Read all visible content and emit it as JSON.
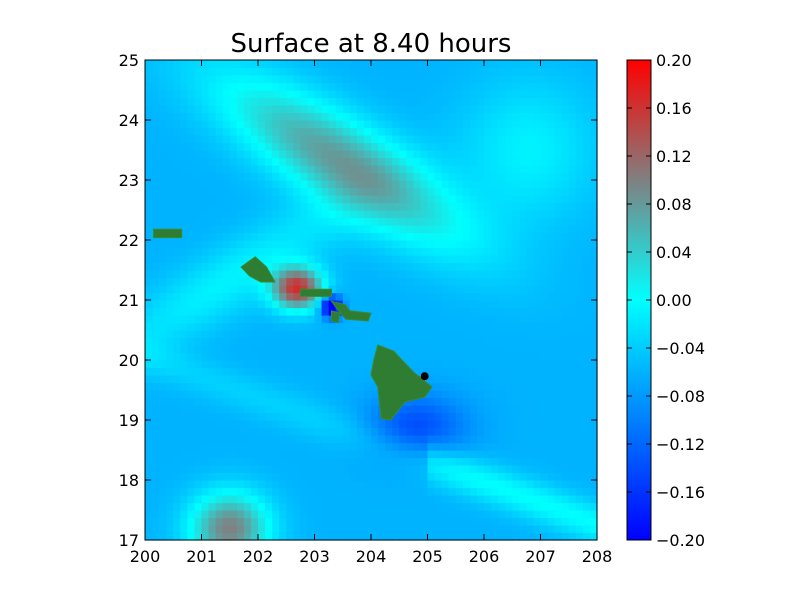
{
  "chart_data": {
    "type": "heatmap",
    "title": "Surface at 8.40 hours",
    "xlabel": "",
    "ylabel": "",
    "xlim": [
      200,
      208
    ],
    "ylim": [
      17,
      25
    ],
    "x_ticks": [
      "200",
      "201",
      "202",
      "203",
      "204",
      "205",
      "206",
      "207",
      "208"
    ],
    "y_ticks": [
      "17",
      "18",
      "19",
      "20",
      "21",
      "22",
      "23",
      "24",
      "25"
    ],
    "grid": false,
    "colorbar": {
      "range": [
        -0.2,
        0.2
      ],
      "ticks": [
        "−0.20",
        "−0.16",
        "−0.12",
        "−0.08",
        "−0.04",
        "0.00",
        "0.04",
        "0.08",
        "0.12",
        "0.16",
        "0.20"
      ],
      "tick_values": [
        -0.2,
        -0.16,
        -0.12,
        -0.08,
        -0.04,
        0.0,
        0.04,
        0.08,
        0.12,
        0.16,
        0.2
      ],
      "colors": [
        {
          "value": -0.2,
          "color": "#0000ff"
        },
        {
          "value": -0.1,
          "color": "#0080ff"
        },
        {
          "value": 0.0,
          "color": "#00ffff"
        },
        {
          "value": 0.1,
          "color": "#808080"
        },
        {
          "value": 0.2,
          "color": "#ff0000"
        }
      ]
    },
    "features": [
      {
        "name": "surface-max",
        "x": 202.7,
        "y": 21.2,
        "value": 0.2
      },
      {
        "name": "surface-min",
        "x": 203.3,
        "y": 20.9,
        "value": -0.2
      },
      {
        "name": "trough-southeast",
        "x": 204.8,
        "y": 18.9,
        "value": -0.15
      },
      {
        "name": "ridge-south",
        "x": 201.5,
        "y": 17.2,
        "value": 0.1
      },
      {
        "name": "ridge-north",
        "x": 203.5,
        "y": 23.3,
        "value": 0.1
      }
    ],
    "islands": [
      {
        "name": "kauai",
        "points": [
          [
            200.15,
            22.04
          ],
          [
            200.65,
            22.04
          ],
          [
            200.65,
            22.18
          ],
          [
            200.15,
            22.18
          ]
        ]
      },
      {
        "name": "oahu",
        "points": [
          [
            201.7,
            21.55
          ],
          [
            201.95,
            21.72
          ],
          [
            202.15,
            21.55
          ],
          [
            202.3,
            21.3
          ],
          [
            202.05,
            21.3
          ],
          [
            201.85,
            21.4
          ]
        ]
      },
      {
        "name": "molokai",
        "points": [
          [
            202.75,
            21.18
          ],
          [
            203.3,
            21.18
          ],
          [
            203.3,
            21.06
          ],
          [
            202.75,
            21.06
          ]
        ]
      },
      {
        "name": "maui",
        "points": [
          [
            203.3,
            20.98
          ],
          [
            203.55,
            20.92
          ],
          [
            203.62,
            20.82
          ],
          [
            204.0,
            20.78
          ],
          [
            203.95,
            20.65
          ],
          [
            203.55,
            20.68
          ],
          [
            203.4,
            20.85
          ]
        ]
      },
      {
        "name": "lanai",
        "points": [
          [
            203.3,
            20.82
          ],
          [
            203.45,
            20.78
          ],
          [
            203.42,
            20.62
          ],
          [
            203.3,
            20.65
          ]
        ]
      },
      {
        "name": "hawaii",
        "points": [
          [
            204.12,
            20.25
          ],
          [
            204.4,
            20.15
          ],
          [
            204.75,
            19.8
          ],
          [
            205.08,
            19.55
          ],
          [
            204.95,
            19.38
          ],
          [
            204.6,
            19.3
          ],
          [
            204.35,
            19.0
          ],
          [
            204.18,
            19.02
          ],
          [
            204.12,
            19.55
          ],
          [
            204.0,
            19.75
          ],
          [
            204.05,
            20.0
          ]
        ]
      }
    ],
    "markers": [
      {
        "name": "station",
        "x": 204.95,
        "y": 19.73
      }
    ]
  }
}
